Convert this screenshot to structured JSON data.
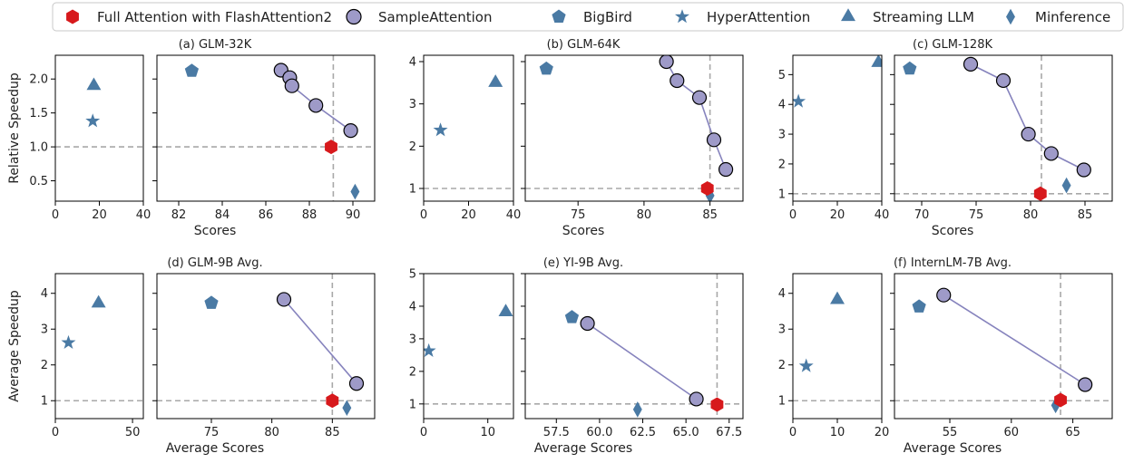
{
  "legend": [
    {
      "label": "Full Attention with FlashAttention2",
      "marker": "hexagon",
      "color": "#d7191c"
    },
    {
      "label": "SampleAttention",
      "marker": "circle",
      "color": "#9e9ac8"
    },
    {
      "label": "BigBird",
      "marker": "pentagon",
      "color": "#4a7aa4"
    },
    {
      "label": "HyperAttention",
      "marker": "star",
      "color": "#4a7aa4"
    },
    {
      "label": "Streaming LLM",
      "marker": "triangle",
      "color": "#4a7aa4"
    },
    {
      "label": "Minference",
      "marker": "diamond",
      "color": "#4a7aa4"
    }
  ],
  "chart_data": [
    {
      "type": "scatter",
      "title": "(a) GLM-32K",
      "ylabel": "Relative Speedup",
      "xlabel": "Scores",
      "ylim": [
        0.2,
        2.35
      ],
      "yticks": [
        "0.5",
        "1.0",
        "1.5",
        "2.0"
      ],
      "ytick_values": [
        0.5,
        1.0,
        1.5,
        2.0
      ],
      "left": {
        "xlim": [
          0,
          40
        ],
        "xticks": [
          "0",
          "20",
          "40"
        ],
        "xtick_values": [
          0,
          20,
          40
        ],
        "points": [
          {
            "series": "HyperAttention",
            "x": 17,
            "y": 1.38
          },
          {
            "series": "Streaming LLM",
            "x": 17.5,
            "y": 1.9
          }
        ]
      },
      "right": {
        "xlim": [
          81,
          91
        ],
        "xticks": [
          "82",
          "84",
          "86",
          "88",
          "90"
        ],
        "xtick_values": [
          82,
          84,
          86,
          88,
          90
        ],
        "vline": 89.1,
        "hline": 1.0,
        "sample_line": [
          [
            86.7,
            2.13
          ],
          [
            87.1,
            2.02
          ],
          [
            87.2,
            1.9
          ],
          [
            88.3,
            1.61
          ],
          [
            89.9,
            1.24
          ]
        ],
        "points": [
          {
            "series": "BigBird",
            "x": 82.6,
            "y": 2.12
          },
          {
            "series": "Minference",
            "x": 90.1,
            "y": 0.34
          },
          {
            "series": "Full Attention with FlashAttention2",
            "x": 89.0,
            "y": 1.0
          }
        ]
      }
    },
    {
      "type": "scatter",
      "title": "(b) GLM-64K",
      "ylabel": "",
      "xlabel": "Scores",
      "ylim": [
        0.7,
        4.15
      ],
      "yticks": [
        "1",
        "2",
        "3",
        "4"
      ],
      "ytick_values": [
        1,
        2,
        3,
        4
      ],
      "left": {
        "xlim": [
          0,
          40
        ],
        "xticks": [
          "0",
          "20",
          "40"
        ],
        "xtick_values": [
          0,
          20,
          40
        ],
        "points": [
          {
            "series": "HyperAttention",
            "x": 7.5,
            "y": 2.38
          },
          {
            "series": "Streaming LLM",
            "x": 32,
            "y": 3.5
          }
        ]
      },
      "right": {
        "xlim": [
          71,
          87.5
        ],
        "xticks": [
          "75",
          "80",
          "85"
        ],
        "xtick_values": [
          75,
          80,
          85
        ],
        "vline": 85.0,
        "hline": 1.0,
        "sample_line": [
          [
            81.7,
            4.0
          ],
          [
            82.5,
            3.55
          ],
          [
            84.2,
            3.15
          ],
          [
            85.3,
            2.15
          ],
          [
            86.2,
            1.45
          ]
        ],
        "points": [
          {
            "series": "BigBird",
            "x": 72.6,
            "y": 3.83
          },
          {
            "series": "Minference",
            "x": 85.0,
            "y": 0.83
          },
          {
            "series": "Full Attention with FlashAttention2",
            "x": 84.8,
            "y": 1.0
          }
        ]
      }
    },
    {
      "type": "scatter",
      "title": "(c) GLM-128K",
      "ylabel": "",
      "xlabel": "Scores",
      "ylim": [
        0.75,
        5.65
      ],
      "yticks": [
        "1",
        "2",
        "3",
        "4",
        "5"
      ],
      "ytick_values": [
        1,
        2,
        3,
        4,
        5
      ],
      "left": {
        "xlim": [
          0,
          40
        ],
        "xticks": [
          "0",
          "20",
          "40"
        ],
        "xtick_values": [
          0,
          20,
          40
        ],
        "points": [
          {
            "series": "HyperAttention",
            "x": 2.5,
            "y": 4.1
          },
          {
            "series": "Streaming LLM",
            "x": 38.5,
            "y": 5.4
          }
        ]
      },
      "right": {
        "xlim": [
          67.5,
          87.5
        ],
        "xticks": [
          "70",
          "75",
          "80",
          "85"
        ],
        "xtick_values": [
          70,
          75,
          80,
          85
        ],
        "vline": 81.0,
        "hline": 1.0,
        "sample_line": [
          [
            74.5,
            5.35
          ],
          [
            77.5,
            4.8
          ],
          [
            79.8,
            3.0
          ],
          [
            81.9,
            2.35
          ],
          [
            84.9,
            1.8
          ]
        ],
        "points": [
          {
            "series": "BigBird",
            "x": 68.9,
            "y": 5.2
          },
          {
            "series": "Minference",
            "x": 83.3,
            "y": 1.28
          },
          {
            "series": "Full Attention with FlashAttention2",
            "x": 80.9,
            "y": 1.0
          }
        ]
      }
    },
    {
      "type": "scatter",
      "title": "(d) GLM-9B Avg.",
      "ylabel": "Average Speedup",
      "xlabel": "Average Scores",
      "ylim": [
        0.5,
        4.55
      ],
      "yticks": [
        "1",
        "2",
        "3",
        "4"
      ],
      "ytick_values": [
        1,
        2,
        3,
        4
      ],
      "left": {
        "xlim": [
          0,
          57
        ],
        "xticks": [
          "0",
          "50"
        ],
        "xtick_values": [
          0,
          50
        ],
        "points": [
          {
            "series": "HyperAttention",
            "x": 8.5,
            "y": 2.62
          },
          {
            "series": "Streaming LLM",
            "x": 28,
            "y": 3.72
          }
        ]
      },
      "right": {
        "xlim": [
          70.5,
          88.5
        ],
        "xticks": [
          "75",
          "80",
          "85"
        ],
        "xtick_values": [
          75,
          80,
          85
        ],
        "vline": 85.0,
        "hline": 1.0,
        "sample_line": [
          [
            81.0,
            3.83
          ],
          [
            87.0,
            1.48
          ]
        ],
        "points": [
          {
            "series": "BigBird",
            "x": 75.0,
            "y": 3.73
          },
          {
            "series": "Minference",
            "x": 86.2,
            "y": 0.8
          },
          {
            "series": "Full Attention with FlashAttention2",
            "x": 85.0,
            "y": 1.0
          }
        ]
      }
    },
    {
      "type": "scatter",
      "title": "(e) YI-9B Avg.",
      "ylabel": "",
      "xlabel": "Average Scores",
      "ylim": [
        0.55,
        5.0
      ],
      "yticks": [
        "1",
        "2",
        "3",
        "4",
        "5"
      ],
      "ytick_values": [
        1,
        2,
        3,
        4,
        5
      ],
      "left": {
        "xlim": [
          0,
          14
        ],
        "xticks": [
          "0",
          "10"
        ],
        "xtick_values": [
          0,
          10
        ],
        "points": [
          {
            "series": "HyperAttention",
            "x": 0.8,
            "y": 2.63
          },
          {
            "series": "Streaming LLM",
            "x": 12.8,
            "y": 3.82
          }
        ]
      },
      "right": {
        "xlim": [
          55.7,
          68.3
        ],
        "xticks": [
          "57.5",
          "60.0",
          "62.5",
          "65.0",
          "67.5"
        ],
        "xtick_values": [
          57.5,
          60.0,
          62.5,
          65.0,
          67.5
        ],
        "vline": 66.8,
        "hline": 1.0,
        "sample_line": [
          [
            59.3,
            3.47
          ],
          [
            65.6,
            1.15
          ]
        ],
        "points": [
          {
            "series": "BigBird",
            "x": 58.4,
            "y": 3.66
          },
          {
            "series": "Minference",
            "x": 62.2,
            "y": 0.83
          },
          {
            "series": "Full Attention with FlashAttention2",
            "x": 66.8,
            "y": 0.98
          }
        ]
      }
    },
    {
      "type": "scatter",
      "title": "(f) InternLM-7B Avg.",
      "ylabel": "",
      "xlabel": "Average Scores",
      "ylim": [
        0.5,
        4.55
      ],
      "yticks": [
        "1",
        "2",
        "3",
        "4"
      ],
      "ytick_values": [
        1,
        2,
        3,
        4
      ],
      "left": {
        "xlim": [
          0,
          20
        ],
        "xticks": [
          "0",
          "10",
          "20"
        ],
        "xtick_values": [
          0,
          10,
          20
        ],
        "points": [
          {
            "series": "HyperAttention",
            "x": 3,
            "y": 1.97
          },
          {
            "series": "Streaming LLM",
            "x": 10,
            "y": 3.82
          }
        ]
      },
      "right": {
        "xlim": [
          50.5,
          68.2
        ],
        "xticks": [
          "55",
          "60",
          "65"
        ],
        "xtick_values": [
          55,
          60,
          65
        ],
        "vline": 64.0,
        "hline": 1.0,
        "sample_line": [
          [
            54.5,
            3.95
          ],
          [
            66.0,
            1.45
          ]
        ],
        "points": [
          {
            "series": "BigBird",
            "x": 52.5,
            "y": 3.63
          },
          {
            "series": "Minference",
            "x": 63.6,
            "y": 0.87
          },
          {
            "series": "Full Attention with FlashAttention2",
            "x": 64.0,
            "y": 1.02
          }
        ]
      }
    }
  ]
}
